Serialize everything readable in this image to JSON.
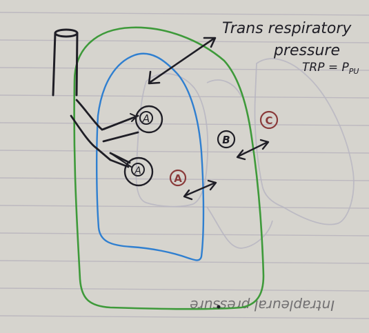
{
  "annotation": {
    "line1": "Trans respiratory",
    "line2": "pressure",
    "line3": "TRP = P",
    "line3_sub": "PU"
  },
  "labels": {
    "alveolus_top": "A",
    "alveolus_bottom": "A",
    "zone_a": "A",
    "zone_b": "B",
    "zone_c": "C"
  },
  "bleed_through_text": "Intrapleural pressure",
  "colors": {
    "paper": "#d6d4ce",
    "rule_line": "#bcb8bf",
    "ink": "#1f1e26",
    "lung_outline": "#2f7fd0",
    "chest_wall": "#3e9a3a",
    "circle_label": "#8a3a3a"
  }
}
